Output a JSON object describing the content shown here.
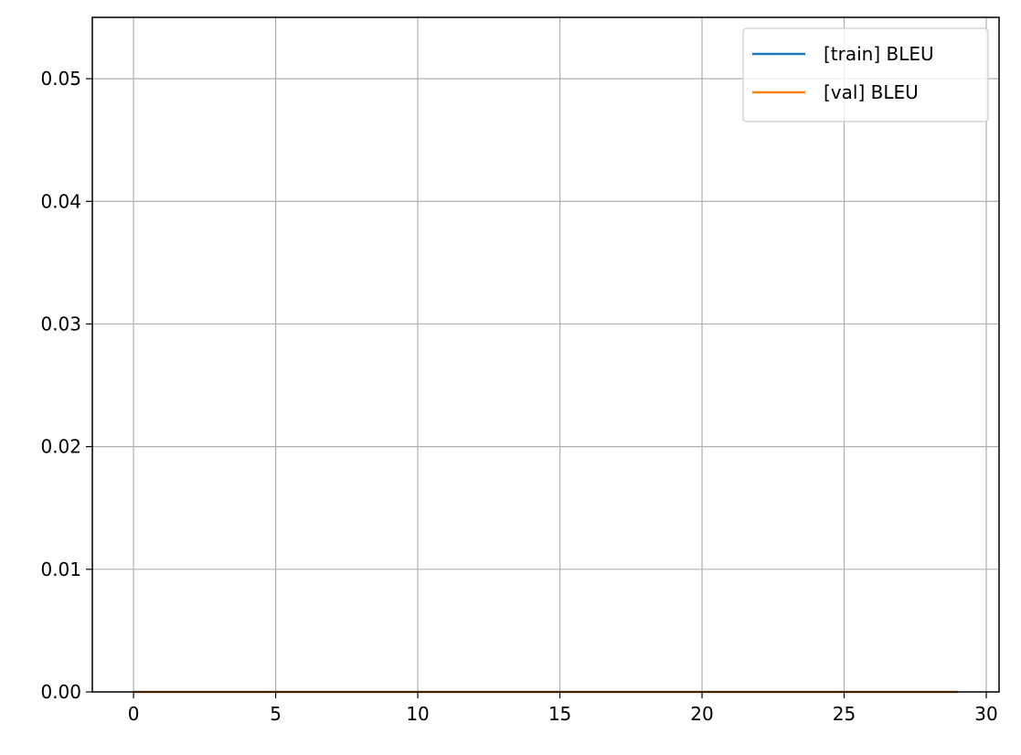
{
  "chart_data": {
    "type": "line",
    "title": "",
    "xlabel": "",
    "ylabel": "",
    "xlim": [
      -1.45,
      30.45
    ],
    "ylim": [
      0,
      0.055
    ],
    "xticks": [
      0,
      5,
      10,
      15,
      20,
      25,
      30
    ],
    "xtick_labels": [
      "0",
      "5",
      "10",
      "15",
      "20",
      "25",
      "30"
    ],
    "yticks": [
      0,
      0.01,
      0.02,
      0.03,
      0.04,
      0.05
    ],
    "ytick_labels": [
      "0.00",
      "0.01",
      "0.02",
      "0.03",
      "0.04",
      "0.05"
    ],
    "grid": true,
    "legend_position": "top-right",
    "x": [
      0,
      1,
      2,
      3,
      4,
      5,
      6,
      7,
      8,
      9,
      10,
      11,
      12,
      13,
      14,
      15,
      16,
      17,
      18,
      19,
      20,
      21,
      22,
      23,
      24,
      25,
      26,
      27,
      28,
      29
    ],
    "series": [
      {
        "name": "[train] BLEU",
        "color": "#1f77b4",
        "values": [
          0,
          0,
          0,
          0,
          0,
          0,
          0,
          0,
          0,
          0,
          0,
          0,
          0,
          0,
          0,
          0,
          0,
          0,
          0,
          0,
          0,
          0,
          0,
          0,
          0,
          0,
          0,
          0,
          0,
          0
        ]
      },
      {
        "name": "[val] BLEU",
        "color": "#ff7f0e",
        "values": [
          0,
          0,
          0,
          0,
          0,
          0,
          0,
          0,
          0,
          0,
          0,
          0,
          0,
          0,
          0,
          0,
          0,
          0,
          0,
          0,
          0,
          0,
          0,
          0,
          0,
          0,
          0,
          0,
          0,
          0
        ]
      }
    ]
  }
}
